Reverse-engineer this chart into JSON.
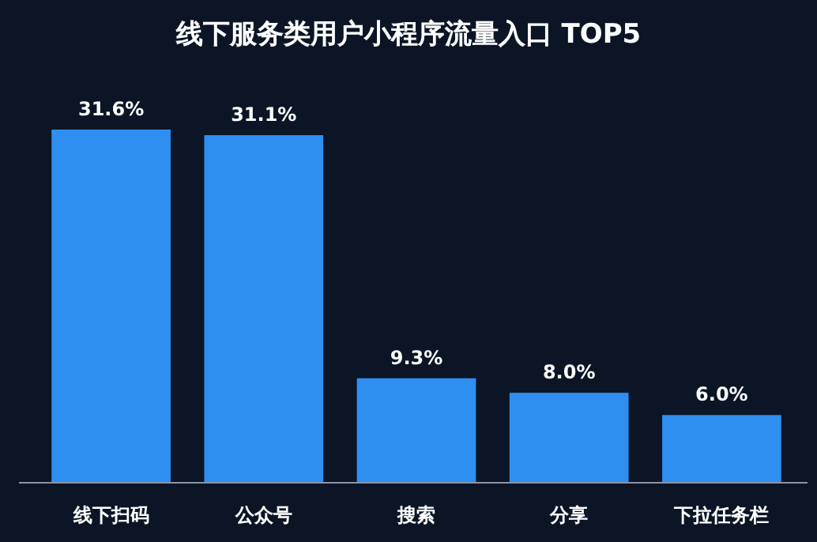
{
  "chart_data": {
    "type": "bar",
    "title": "线下服务类用户小程序流量入口 TOP5",
    "categories": [
      "线下扫码",
      "公众号",
      "搜索",
      "分享",
      "下拉任务栏"
    ],
    "values": [
      31.6,
      31.1,
      9.3,
      8.0,
      6.0
    ],
    "value_labels": [
      "31.6%",
      "31.1%",
      "9.3%",
      "8.0%",
      "6.0%"
    ],
    "color": "#2e8ff0"
  }
}
